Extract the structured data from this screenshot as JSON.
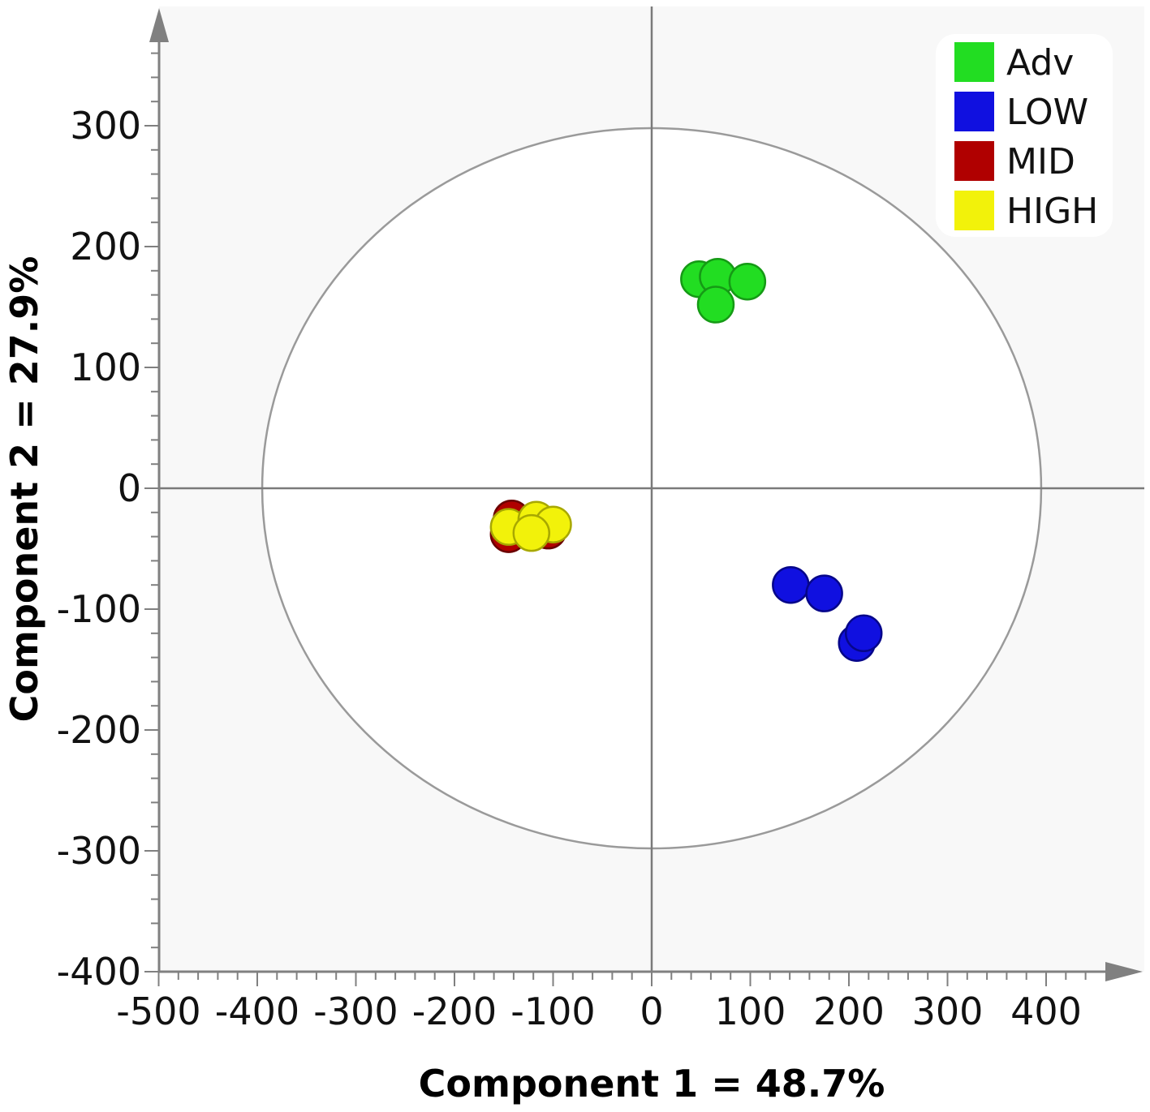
{
  "chart_data": {
    "type": "scatter",
    "xlabel": "Component 1 = 48.7%",
    "ylabel": "Component 2 = 27.9%",
    "xlim": [
      -500,
      500
    ],
    "ylim": [
      -400,
      400
    ],
    "x_ticks": [
      -500,
      -400,
      -300,
      -200,
      -100,
      0,
      100,
      200,
      300,
      400
    ],
    "y_ticks": [
      300,
      200,
      100,
      0,
      -100,
      -200,
      -300,
      -400
    ],
    "grid": false,
    "confidence_ellipse": {
      "center": [
        0,
        0
      ],
      "semi_x": 395,
      "semi_y": 298
    },
    "legend_position": "top-right",
    "series": [
      {
        "name": "Adv",
        "color": "#22dd22",
        "points": [
          [
            48,
            173
          ],
          [
            67,
            175
          ],
          [
            97,
            171
          ],
          [
            65,
            152
          ]
        ]
      },
      {
        "name": "LOW",
        "color": "#1010e0",
        "points": [
          [
            141,
            -80
          ],
          [
            175,
            -87
          ],
          [
            208,
            -128
          ],
          [
            215,
            -120
          ]
        ]
      },
      {
        "name": "MID",
        "color": "#b00000",
        "points": [
          [
            -142,
            -25
          ],
          [
            -145,
            -38
          ],
          [
            -105,
            -35
          ],
          [
            -120,
            -30
          ]
        ]
      },
      {
        "name": "HIGH",
        "color": "#f2f20a",
        "points": [
          [
            -145,
            -32
          ],
          [
            -117,
            -26
          ],
          [
            -100,
            -30
          ],
          [
            -122,
            -37
          ]
        ]
      }
    ]
  }
}
